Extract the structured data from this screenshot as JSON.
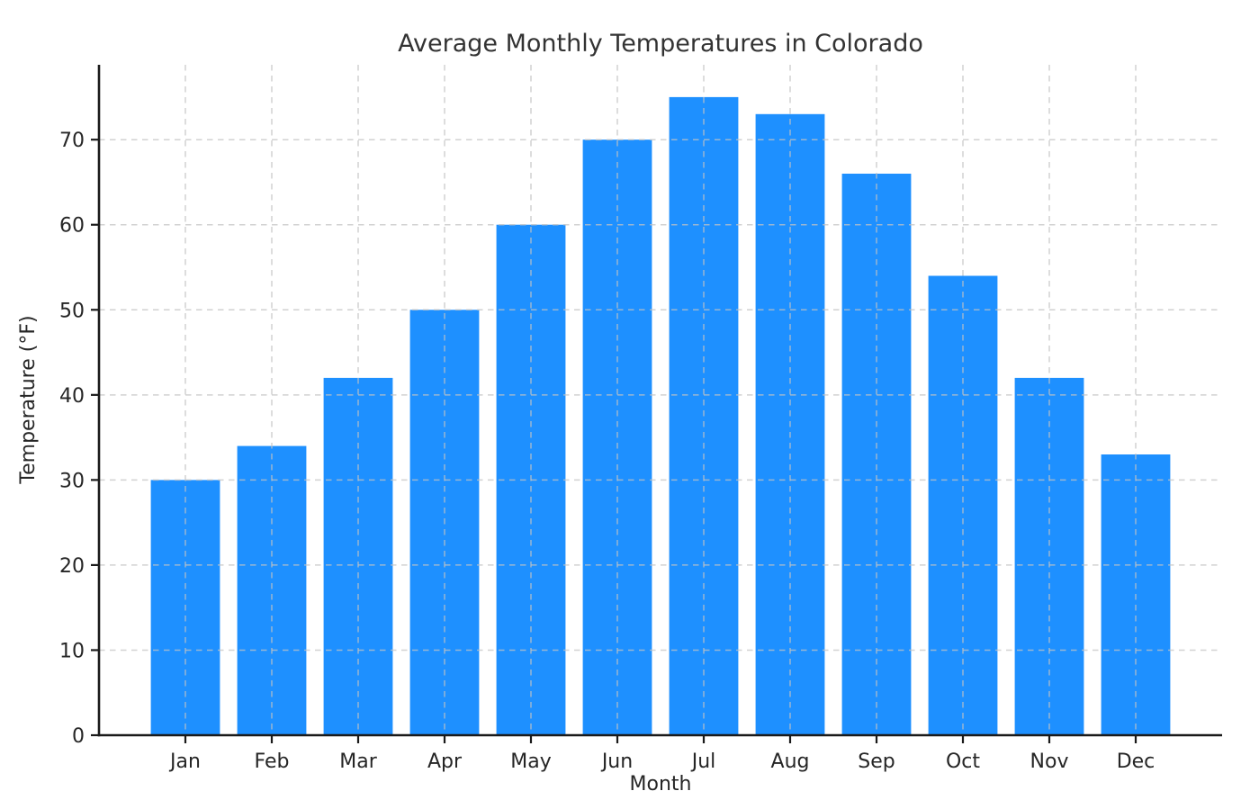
{
  "chart_data": {
    "type": "bar",
    "title": "Average Monthly Temperatures in Colorado",
    "xlabel": "Month",
    "ylabel": "Temperature (°F)",
    "categories": [
      "Jan",
      "Feb",
      "Mar",
      "Apr",
      "May",
      "Jun",
      "Jul",
      "Aug",
      "Sep",
      "Oct",
      "Nov",
      "Dec"
    ],
    "values": [
      30,
      34,
      42,
      50,
      60,
      70,
      75,
      73,
      66,
      54,
      42,
      33
    ],
    "yticks": [
      0,
      10,
      20,
      30,
      40,
      50,
      60,
      70
    ],
    "ylim": [
      0,
      78.8
    ],
    "bar_color": "#1E90FF",
    "grid": true,
    "grid_style": "dashed",
    "grid_color": "#c3c3c3",
    "grid_over_bars": true,
    "legend": "none",
    "background": "#ffffff",
    "text_color": "#262626"
  }
}
